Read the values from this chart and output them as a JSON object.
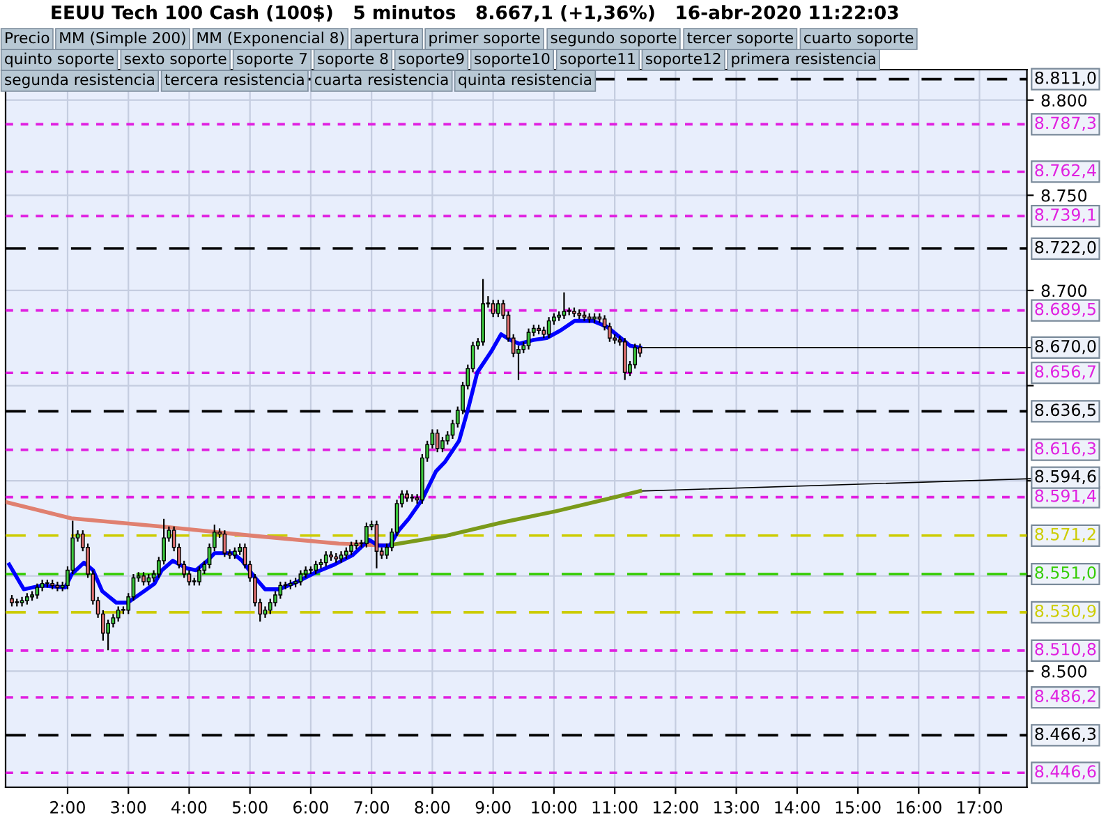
{
  "chart_data": {
    "type": "candlestick",
    "title": "EEUU Tech 100 Cash (100$)   5 minutos   8.667,1 (+1,36%)   16-abr-2020 11:22:03",
    "x": [
      1.0833,
      1.1667,
      1.25,
      1.3333,
      1.4167,
      1.5,
      1.5833,
      1.6667,
      1.75,
      1.8333,
      1.9167,
      2,
      2.0833,
      2.1667,
      2.25,
      2.3333,
      2.4167,
      2.5,
      2.5833,
      2.6667,
      2.75,
      2.8333,
      2.9167,
      3,
      3.0833,
      3.1667,
      3.25,
      3.3333,
      3.4167,
      3.5,
      3.5833,
      3.6667,
      3.75,
      3.8333,
      3.9167,
      4,
      4.0833,
      4.1667,
      4.25,
      4.3333,
      4.4167,
      4.5,
      4.5833,
      4.6667,
      4.75,
      4.8333,
      4.9167,
      5,
      5.0833,
      5.1667,
      5.25,
      5.3333,
      5.4167,
      5.5,
      5.5833,
      5.6667,
      5.75,
      5.8333,
      5.9167,
      6,
      6.0833,
      6.1667,
      6.25,
      6.3333,
      6.4167,
      6.5,
      6.5833,
      6.6667,
      6.75,
      6.8333,
      6.9167,
      7,
      7.0833,
      7.1667,
      7.25,
      7.3333,
      7.4167,
      7.5,
      7.5833,
      7.6667,
      7.75,
      7.8333,
      7.9167,
      8,
      8.0833,
      8.1667,
      8.25,
      8.3333,
      8.4167,
      8.5,
      8.5833,
      8.6667,
      8.75,
      8.8333,
      8.9167,
      9,
      9.0833,
      9.1667,
      9.25,
      9.3333,
      9.4167,
      9.5,
      9.5833,
      9.6667,
      9.75,
      9.8333,
      9.9167,
      10,
      10.0833,
      10.1667,
      10.25,
      10.3333,
      10.4167,
      10.5,
      10.5833,
      10.6667,
      10.75,
      10.8333,
      10.9167,
      11,
      11.0833,
      11.1667,
      11.25,
      11.3333,
      11.4167
    ],
    "ohlc": [
      [
        8538,
        8540,
        8534,
        8536
      ],
      [
        8536,
        8538,
        8534,
        8536
      ],
      [
        8536,
        8539,
        8534,
        8537
      ],
      [
        8537,
        8541,
        8535,
        8539
      ],
      [
        8539,
        8542,
        8537,
        8540
      ],
      [
        8540,
        8546,
        8538,
        8544
      ],
      [
        8544,
        8548,
        8542,
        8546
      ],
      [
        8546,
        8548,
        8544,
        8546
      ],
      [
        8546,
        8548,
        8543,
        8545
      ],
      [
        8545,
        8547,
        8542,
        8544
      ],
      [
        8544,
        8547,
        8542,
        8545
      ],
      [
        8545,
        8555,
        8543,
        8553
      ],
      [
        8553,
        8579,
        8551,
        8570
      ],
      [
        8570,
        8574,
        8568,
        8572
      ],
      [
        8572,
        8574,
        8563,
        8565
      ],
      [
        8565,
        8567,
        8549,
        8551
      ],
      [
        8551,
        8553,
        8535,
        8537
      ],
      [
        8537,
        8539,
        8528,
        8530
      ],
      [
        8530,
        8532,
        8516,
        8520
      ],
      [
        8520,
        8527,
        8511,
        8525
      ],
      [
        8525,
        8530,
        8523,
        8528
      ],
      [
        8528,
        8534,
        8526,
        8532
      ],
      [
        8532,
        8534,
        8530,
        8532
      ],
      [
        8532,
        8541,
        8530,
        8539
      ],
      [
        8539,
        8551,
        8537,
        8549
      ],
      [
        8549,
        8552,
        8547,
        8550
      ],
      [
        8550,
        8552,
        8545,
        8547
      ],
      [
        8547,
        8551,
        8545,
        8549
      ],
      [
        8549,
        8553,
        8547,
        8551
      ],
      [
        8551,
        8560,
        8549,
        8558
      ],
      [
        8558,
        8580,
        8556,
        8570
      ],
      [
        8570,
        8576,
        8568,
        8574
      ],
      [
        8574,
        8576,
        8563,
        8565
      ],
      [
        8565,
        8567,
        8554,
        8556
      ],
      [
        8556,
        8558,
        8549,
        8551
      ],
      [
        8551,
        8553,
        8545,
        8547
      ],
      [
        8547,
        8549,
        8545,
        8547
      ],
      [
        8547,
        8555,
        8545,
        8553
      ],
      [
        8553,
        8558,
        8551,
        8556
      ],
      [
        8556,
        8567,
        8554,
        8565
      ],
      [
        8565,
        8577,
        8563,
        8573
      ],
      [
        8573,
        8575,
        8570,
        8572
      ],
      [
        8572,
        8574,
        8560,
        8562
      ],
      [
        8562,
        8564,
        8559,
        8561
      ],
      [
        8561,
        8565,
        8559,
        8563
      ],
      [
        8563,
        8567,
        8561,
        8565
      ],
      [
        8565,
        8567,
        8554,
        8556
      ],
      [
        8556,
        8558,
        8547,
        8549
      ],
      [
        8549,
        8551,
        8534,
        8536
      ],
      [
        8536,
        8538,
        8526,
        8530
      ],
      [
        8530,
        8534,
        8528,
        8532
      ],
      [
        8532,
        8538,
        8530,
        8536
      ],
      [
        8536,
        8542,
        8534,
        8540
      ],
      [
        8540,
        8547,
        8538,
        8545
      ],
      [
        8545,
        8547,
        8543,
        8545
      ],
      [
        8545,
        8548,
        8543,
        8546
      ],
      [
        8546,
        8549,
        8544,
        8547
      ],
      [
        8547,
        8553,
        8545,
        8551
      ],
      [
        8551,
        8555,
        8549,
        8553
      ],
      [
        8553,
        8555,
        8551,
        8553
      ],
      [
        8553,
        8558,
        8551,
        8556
      ],
      [
        8556,
        8559,
        8554,
        8557
      ],
      [
        8557,
        8563,
        8555,
        8561
      ],
      [
        8561,
        8563,
        8558,
        8560
      ],
      [
        8560,
        8562,
        8557,
        8559
      ],
      [
        8559,
        8563,
        8557,
        8561
      ],
      [
        8561,
        8565,
        8559,
        8563
      ],
      [
        8563,
        8568,
        8561,
        8566
      ],
      [
        8566,
        8569,
        8564,
        8567
      ],
      [
        8567,
        8569,
        8565,
        8567
      ],
      [
        8567,
        8578,
        8565,
        8576
      ],
      [
        8576,
        8579,
        8574,
        8577
      ],
      [
        8577,
        8579,
        8554,
        8563
      ],
      [
        8563,
        8565,
        8559,
        8561
      ],
      [
        8561,
        8567,
        8559,
        8565
      ],
      [
        8565,
        8575,
        8563,
        8573
      ],
      [
        8573,
        8590,
        8571,
        8588
      ],
      [
        8588,
        8595,
        8586,
        8593
      ],
      [
        8593,
        8595,
        8589,
        8591
      ],
      [
        8591,
        8593,
        8589,
        8591
      ],
      [
        8591,
        8593,
        8588,
        8590
      ],
      [
        8590,
        8614,
        8588,
        8612
      ],
      [
        8612,
        8621,
        8610,
        8619
      ],
      [
        8619,
        8627,
        8617,
        8625
      ],
      [
        8625,
        8627,
        8615,
        8617
      ],
      [
        8617,
        8623,
        8615,
        8621
      ],
      [
        8621,
        8626,
        8619,
        8624
      ],
      [
        8624,
        8632,
        8622,
        8630
      ],
      [
        8630,
        8639,
        8628,
        8637
      ],
      [
        8637,
        8652,
        8635,
        8650
      ],
      [
        8650,
        8661,
        8648,
        8659
      ],
      [
        8659,
        8673,
        8657,
        8671
      ],
      [
        8671,
        8675,
        8669,
        8673
      ],
      [
        8673,
        8706,
        8671,
        8693
      ],
      [
        8693,
        8697,
        8691,
        8693
      ],
      [
        8693,
        8695,
        8686,
        8688
      ],
      [
        8688,
        8695,
        8686,
        8693
      ],
      [
        8693,
        8695,
        8685,
        8687
      ],
      [
        8687,
        8689,
        8673,
        8675
      ],
      [
        8675,
        8677,
        8665,
        8667
      ],
      [
        8667,
        8671,
        8653,
        8669
      ],
      [
        8669,
        8673,
        8667,
        8671
      ],
      [
        8671,
        8680,
        8669,
        8678
      ],
      [
        8678,
        8682,
        8676,
        8680
      ],
      [
        8680,
        8682,
        8677,
        8679
      ],
      [
        8679,
        8681,
        8675,
        8677
      ],
      [
        8677,
        8686,
        8675,
        8684
      ],
      [
        8684,
        8688,
        8682,
        8686
      ],
      [
        8686,
        8689,
        8684,
        8687
      ],
      [
        8687,
        8699,
        8685,
        8689
      ],
      [
        8689,
        8691,
        8687,
        8689
      ],
      [
        8689,
        8691,
        8686,
        8688
      ],
      [
        8688,
        8690,
        8685,
        8687
      ],
      [
        8687,
        8689,
        8684,
        8686
      ],
      [
        8686,
        8688,
        8683,
        8685
      ],
      [
        8685,
        8688,
        8683,
        8686
      ],
      [
        8686,
        8688,
        8683,
        8685
      ],
      [
        8685,
        8687,
        8679,
        8681
      ],
      [
        8681,
        8683,
        8673,
        8675
      ],
      [
        8675,
        8677,
        8672,
        8674
      ],
      [
        8674,
        8676,
        8671,
        8673
      ],
      [
        8673,
        8675,
        8653,
        8657
      ],
      [
        8657,
        8663,
        8655,
        8661
      ],
      [
        8661,
        8672,
        8659,
        8670
      ],
      [
        8670,
        8672,
        8665,
        8667.1
      ]
    ],
    "colors": [
      "#e07070",
      "#3cc83c",
      "#3cc83c",
      "#3cc83c",
      "#3cc83c",
      "#3cc83c",
      "#3cc83c",
      "#3cc83c",
      "#e07070",
      "#e07070",
      "#3cc83c",
      "#3cc83c",
      "#3cc83c",
      "#3cc83c",
      "#e07070",
      "#e07070",
      "#e07070",
      "#e07070",
      "#e07070",
      "#3cc83c",
      "#3cc83c",
      "#3cc83c",
      "#3cc83c",
      "#3cc83c",
      "#3cc83c",
      "#3cc83c",
      "#e07070",
      "#3cc83c",
      "#3cc83c",
      "#3cc83c",
      "#3cc83c",
      "#3cc83c",
      "#e07070",
      "#e07070",
      "#e07070",
      "#e07070",
      "#3cc83c",
      "#3cc83c",
      "#3cc83c",
      "#3cc83c",
      "#3cc83c",
      "#e07070",
      "#e07070",
      "#e07070",
      "#3cc83c",
      "#3cc83c",
      "#e07070",
      "#e07070",
      "#e07070",
      "#e07070",
      "#3cc83c",
      "#3cc83c",
      "#3cc83c",
      "#3cc83c",
      "#3cc83c",
      "#3cc83c",
      "#3cc83c",
      "#3cc83c",
      "#3cc83c",
      "#3cc83c",
      "#3cc83c",
      "#3cc83c",
      "#3cc83c",
      "#e07070",
      "#e07070",
      "#3cc83c",
      "#3cc83c",
      "#3cc83c",
      "#3cc83c",
      "#3cc83c",
      "#3cc83c",
      "#3cc83c",
      "#e07070",
      "#e07070",
      "#3cc83c",
      "#3cc83c",
      "#3cc83c",
      "#3cc83c",
      "#e07070",
      "#3cc83c",
      "#e07070",
      "#3cc83c",
      "#3cc83c",
      "#3cc83c",
      "#e07070",
      "#3cc83c",
      "#3cc83c",
      "#3cc83c",
      "#3cc83c",
      "#3cc83c",
      "#3cc83c",
      "#3cc83c",
      "#3cc83c",
      "#3cc83c",
      "#3cc83c",
      "#e07070",
      "#3cc83c",
      "#e07070",
      "#e07070",
      "#e07070",
      "#3cc83c",
      "#3cc83c",
      "#3cc83c",
      "#3cc83c",
      "#e07070",
      "#e07070",
      "#3cc83c",
      "#3cc83c",
      "#3cc83c",
      "#3cc83c",
      "#3cc83c",
      "#e07070",
      "#e07070",
      "#e07070",
      "#e07070",
      "#3cc83c",
      "#e07070",
      "#e07070",
      "#e07070",
      "#e07070",
      "#e07070",
      "#e07070",
      "#3cc83c",
      "#3cc83c",
      "#e07070"
    ],
    "series": [
      {
        "type": "line",
        "color": "#e08070",
        "x": [
          1.0,
          2.06,
          3.66,
          5.09,
          6.46,
          7.26
        ],
        "values": [
          8588.7,
          8580.3,
          8575.6,
          8571,
          8567,
          8566
        ]
      },
      {
        "type": "line",
        "color": "#7a9a1a",
        "x": [
          7.26,
          8.21,
          9.13,
          10.03,
          10.95,
          11.4167
        ],
        "values": [
          8566,
          8571,
          8578,
          8584,
          8591,
          8594.6
        ]
      },
      {
        "type": "line",
        "color": "#0000ff",
        "x": [
          1.04,
          1.28,
          1.58,
          1.96,
          2.07,
          2.27,
          2.42,
          2.57,
          2.8,
          2.99,
          3.26,
          3.43,
          3.55,
          3.73,
          3.96,
          4.11,
          4.3,
          4.42,
          4.72,
          4.87,
          5.06,
          5.25,
          5.48,
          5.78,
          6.09,
          6.39,
          6.69,
          6.96,
          7.11,
          7.3,
          7.45,
          7.61,
          7.83,
          8.06,
          8.21,
          8.44,
          8.59,
          8.74,
          8.97,
          9.13,
          9.28,
          9.43,
          9.66,
          9.88,
          10.11,
          10.34,
          10.64,
          10.87,
          11.1,
          11.25,
          11.4167
        ],
        "values": [
          8556,
          8543,
          8545,
          8544,
          8551,
          8557,
          8553,
          8542,
          8536,
          8536,
          8542,
          8546,
          8553,
          8558,
          8554,
          8553,
          8558,
          8562,
          8562,
          8558,
          8550,
          8543,
          8543,
          8547,
          8552,
          8556,
          8561,
          8569,
          8566,
          8566,
          8574,
          8580,
          8590,
          8605,
          8610,
          8621,
          8638,
          8657,
          8668,
          8677,
          8674,
          8672,
          8674,
          8675,
          8679,
          8684,
          8684,
          8681,
          8675,
          8671,
          8670
        ]
      }
    ],
    "ref_lines": [
      {
        "axis": "y",
        "value": 8811.0,
        "label": "8.811,0",
        "color": "#000000",
        "line_style": "dashed"
      },
      {
        "axis": "y",
        "value": 8787.3,
        "label": "8.787,3",
        "color": "#e020e0",
        "line_style": "dotted"
      },
      {
        "axis": "y",
        "value": 8762.4,
        "label": "8.762,4",
        "color": "#e020e0",
        "line_style": "dotted"
      },
      {
        "axis": "y",
        "value": 8739.1,
        "label": "8.739,1",
        "color": "#e020e0",
        "line_style": "dotted"
      },
      {
        "axis": "y",
        "value": 8722.0,
        "label": "8.722,0",
        "color": "#000000",
        "line_style": "dashed"
      },
      {
        "axis": "y",
        "value": 8689.5,
        "label": "8.689,5",
        "color": "#e020e0",
        "line_style": "dotted"
      },
      {
        "axis": "y",
        "value": 8656.7,
        "label": "8.656,7",
        "color": "#e020e0",
        "line_style": "dotted"
      },
      {
        "axis": "y",
        "value": 8636.5,
        "label": "8.636,5",
        "color": "#000000",
        "line_style": "dashed"
      },
      {
        "axis": "y",
        "value": 8616.3,
        "label": "8.616,3",
        "color": "#e020e0",
        "line_style": "dotted"
      },
      {
        "axis": "y",
        "value": 8591.4,
        "label": "8.591,4",
        "color": "#e020e0",
        "line_style": "dotted"
      },
      {
        "axis": "y",
        "value": 8571.2,
        "label": "8.571,2",
        "color": "#cccc00",
        "line_style": "dashed"
      },
      {
        "axis": "y",
        "value": 8551.0,
        "label": "8.551,0",
        "color": "#33cc00",
        "line_style": "dashed"
      },
      {
        "axis": "y",
        "value": 8530.9,
        "label": "8.530,9",
        "color": "#cccc00",
        "line_style": "dashed"
      },
      {
        "axis": "y",
        "value": 8510.8,
        "label": "8.510,8",
        "color": "#e020e0",
        "line_style": "dotted"
      },
      {
        "axis": "y",
        "value": 8486.2,
        "label": "8.486,2",
        "color": "#e020e0",
        "line_style": "dotted"
      },
      {
        "axis": "y",
        "value": 8466.3,
        "label": "8.466,3",
        "color": "#000000",
        "line_style": "dashed"
      },
      {
        "axis": "y",
        "value": 8446.6,
        "label": "8.446,6",
        "color": "#e020e0",
        "line_style": "dotted"
      }
    ],
    "annotations": [
      "Precio",
      "MM (Simple 200)",
      "MM (Exponencial 8)",
      "apertura",
      "primer soporte",
      "segundo soporte",
      "tercer soporte",
      "cuarto soporte",
      "quinto soporte",
      "sexto soporte",
      "soporte 7",
      "soporte 8",
      "soporte9",
      "soporte10",
      "soporte11",
      "soporte12",
      "primera resistencia",
      "segunda resistencia",
      "tercera resistencia",
      "cuarta resistencia",
      "quinta resistencia",
      {
        "text": "8.670,0",
        "x": 11.4167,
        "y": 8670.0
      },
      {
        "text": "8.594,6",
        "x": 11.4167,
        "y": 8594.6
      }
    ],
    "xlim": [
      0.98,
      17.78
    ],
    "xticks": [
      {
        "value": 2,
        "label": "2:00"
      },
      {
        "value": 3,
        "label": "3:00"
      },
      {
        "value": 4,
        "label": "4:00"
      },
      {
        "value": 5,
        "label": "5:00"
      },
      {
        "value": 6,
        "label": "6:00"
      },
      {
        "value": 7,
        "label": "7:00"
      },
      {
        "value": 8,
        "label": "8:00"
      },
      {
        "value": 9,
        "label": "9:00"
      },
      {
        "value": 10,
        "label": "10:00"
      },
      {
        "value": 11,
        "label": "11:00"
      },
      {
        "value": 12,
        "label": "12:00"
      },
      {
        "value": 13,
        "label": "13:00"
      },
      {
        "value": 14,
        "label": "14:00"
      },
      {
        "value": 15,
        "label": "15:00"
      },
      {
        "value": 16,
        "label": "16:00"
      },
      {
        "value": 17,
        "label": "17:00"
      }
    ],
    "ylim": [
      8439,
      8816
    ],
    "yticks": [
      {
        "value": 8500,
        "label": "8.500"
      },
      {
        "value": 8550,
        "label": null
      },
      {
        "value": 8600,
        "label": null
      },
      {
        "value": 8650,
        "label": null
      },
      {
        "value": 8700,
        "label": "8.700"
      },
      {
        "value": 8750,
        "label": "8.750"
      },
      {
        "value": 8800,
        "label": "8.800"
      }
    ],
    "grid": true
  }
}
